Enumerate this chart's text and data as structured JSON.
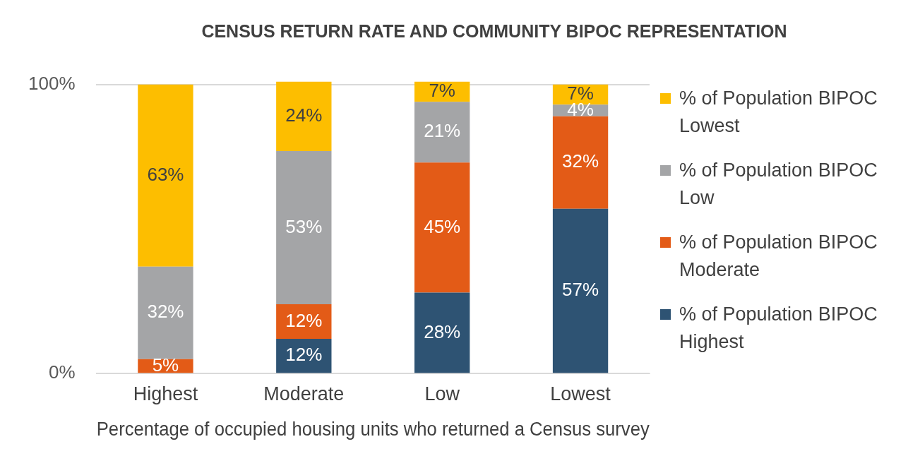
{
  "chart_data": {
    "type": "bar",
    "title": "CENSUS RETURN RATE AND COMMUNITY BIPOC REPRESENTATION",
    "xlabel": "Percentage of occupied housing units who returned a Census survey",
    "categories": [
      "Highest",
      "Moderate",
      "Low",
      "Lowest"
    ],
    "stacked": true,
    "ylim": [
      0,
      101
    ],
    "yticks": [
      {
        "value": 0,
        "label": "0%"
      },
      {
        "value": 100,
        "label": "100%"
      }
    ],
    "grid": "y",
    "legend": "right",
    "series": [
      {
        "name": "% of Population BIPOC Highest",
        "color": "#2e5373",
        "values": [
          null,
          12,
          28,
          57
        ],
        "value_labels": [
          null,
          "12%",
          "28%",
          "57%"
        ]
      },
      {
        "name": "% of Population BIPOC Moderate",
        "color": "#e35b17",
        "values": [
          5,
          12,
          45,
          32
        ],
        "value_labels": [
          "5%",
          "12%",
          "45%",
          "32%"
        ]
      },
      {
        "name": "% of Population BIPOC Low",
        "color": "#a4a5a7",
        "values": [
          32,
          53,
          21,
          4
        ],
        "value_labels": [
          "32%",
          "53%",
          "21%",
          "4%"
        ]
      },
      {
        "name": "% of Population BIPOC Lowest",
        "color": "#fdbe00",
        "values": [
          63,
          24,
          7,
          7
        ],
        "value_labels": [
          "63%",
          "24%",
          "7%",
          "7%"
        ]
      }
    ]
  }
}
